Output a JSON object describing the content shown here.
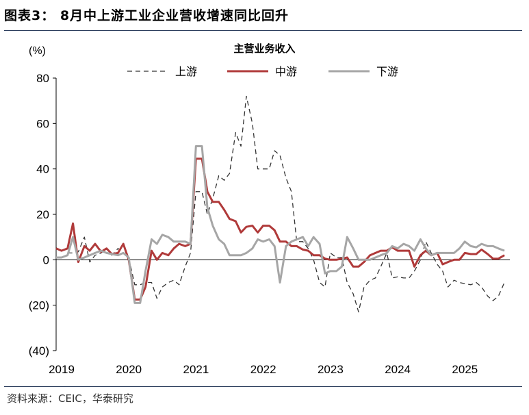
{
  "figure": {
    "title": "图表3： 8月中上游工业企业营收增速同比回升",
    "source": "资料来源：CEIC，华泰研究"
  },
  "chart_data": {
    "type": "line",
    "title": "主营业务收入",
    "ylabel": "(%)",
    "ylim": [
      -40,
      80
    ],
    "yticks": [
      -40,
      -20,
      0,
      20,
      40,
      60,
      80
    ],
    "ytick_labels": [
      "(40)",
      "(20)",
      "0",
      "20",
      "40",
      "60",
      "80"
    ],
    "xlim": [
      2019.0,
      2025.75
    ],
    "xticks": [
      2019,
      2020,
      2021,
      2022,
      2023,
      2024,
      2025
    ],
    "xtick_labels": [
      "2019",
      "2020",
      "2021",
      "2022",
      "2023",
      "2024",
      "2025"
    ],
    "legend_position": "top",
    "series": [
      {
        "name": "上游",
        "color": "#333333",
        "style": "dashed",
        "points": [
          [
            2019.17,
            3
          ],
          [
            2019.25,
            3
          ],
          [
            2019.33,
            3.5
          ],
          [
            2019.42,
            10
          ],
          [
            2019.5,
            -1
          ],
          [
            2019.58,
            2
          ],
          [
            2019.67,
            3
          ],
          [
            2019.75,
            5
          ],
          [
            2019.83,
            2
          ],
          [
            2019.92,
            5
          ],
          [
            2020.0,
            3
          ],
          [
            2020.08,
            1
          ],
          [
            2020.17,
            -11
          ],
          [
            2020.25,
            -11
          ],
          [
            2020.33,
            -10
          ],
          [
            2020.42,
            -10
          ],
          [
            2020.5,
            -17
          ],
          [
            2020.58,
            -12
          ],
          [
            2020.67,
            -10
          ],
          [
            2020.75,
            -9
          ],
          [
            2020.83,
            -11
          ],
          [
            2020.92,
            -3
          ],
          [
            2021.0,
            3
          ],
          [
            2021.08,
            30
          ],
          [
            2021.17,
            30
          ],
          [
            2021.25,
            20
          ],
          [
            2021.33,
            27
          ],
          [
            2021.42,
            37
          ],
          [
            2021.5,
            35
          ],
          [
            2021.58,
            38
          ],
          [
            2021.67,
            56
          ],
          [
            2021.75,
            50
          ],
          [
            2021.83,
            72
          ],
          [
            2021.92,
            60
          ],
          [
            2022.0,
            40
          ],
          [
            2022.08,
            40
          ],
          [
            2022.17,
            40
          ],
          [
            2022.25,
            48
          ],
          [
            2022.33,
            46
          ],
          [
            2022.42,
            36
          ],
          [
            2022.5,
            30
          ],
          [
            2022.58,
            8
          ],
          [
            2022.67,
            8
          ],
          [
            2022.75,
            5
          ],
          [
            2022.83,
            0
          ],
          [
            2022.92,
            -10
          ],
          [
            2023.0,
            -12
          ],
          [
            2023.08,
            3
          ],
          [
            2023.17,
            1
          ],
          [
            2023.25,
            1
          ],
          [
            2023.33,
            -10
          ],
          [
            2023.42,
            -15
          ],
          [
            2023.5,
            -23
          ],
          [
            2023.58,
            -12
          ],
          [
            2023.67,
            -9
          ],
          [
            2023.75,
            -8
          ],
          [
            2023.83,
            -3
          ],
          [
            2023.92,
            3
          ],
          [
            2024.0,
            -8
          ],
          [
            2024.08,
            -7.5
          ],
          [
            2024.17,
            -8
          ],
          [
            2024.25,
            -8
          ],
          [
            2024.33,
            -5
          ],
          [
            2024.42,
            0
          ],
          [
            2024.5,
            8
          ],
          [
            2024.58,
            3
          ],
          [
            2024.67,
            -2
          ],
          [
            2024.75,
            -5
          ],
          [
            2024.83,
            -12
          ],
          [
            2024.92,
            -9
          ],
          [
            2025.0,
            -10
          ],
          [
            2025.08,
            -10.5
          ],
          [
            2025.17,
            -11
          ],
          [
            2025.25,
            -10
          ],
          [
            2025.33,
            -12
          ],
          [
            2025.42,
            -16
          ],
          [
            2025.5,
            -18
          ],
          [
            2025.58,
            -16
          ],
          [
            2025.67,
            -10
          ]
        ]
      },
      {
        "name": "中游",
        "color": "#b03a3a",
        "style": "solid",
        "points": [
          [
            2019.0,
            5
          ],
          [
            2019.08,
            4
          ],
          [
            2019.17,
            5
          ],
          [
            2019.25,
            16
          ],
          [
            2019.33,
            -1
          ],
          [
            2019.42,
            6
          ],
          [
            2019.5,
            4
          ],
          [
            2019.58,
            7
          ],
          [
            2019.67,
            3.5
          ],
          [
            2019.75,
            5
          ],
          [
            2019.83,
            2.5
          ],
          [
            2019.92,
            3
          ],
          [
            2020.0,
            7
          ],
          [
            2020.08,
            0
          ],
          [
            2020.17,
            -17.5
          ],
          [
            2020.25,
            -17.5
          ],
          [
            2020.33,
            -12
          ],
          [
            2020.42,
            4
          ],
          [
            2020.5,
            0
          ],
          [
            2020.58,
            3
          ],
          [
            2020.67,
            2
          ],
          [
            2020.75,
            5
          ],
          [
            2020.83,
            7
          ],
          [
            2020.92,
            6
          ],
          [
            2021.0,
            7
          ],
          [
            2021.08,
            44.5
          ],
          [
            2021.17,
            44.5
          ],
          [
            2021.25,
            30
          ],
          [
            2021.33,
            25.5
          ],
          [
            2021.42,
            25.5
          ],
          [
            2021.5,
            22
          ],
          [
            2021.58,
            18
          ],
          [
            2021.67,
            17
          ],
          [
            2021.75,
            12
          ],
          [
            2021.83,
            14.5
          ],
          [
            2021.92,
            15
          ],
          [
            2022.0,
            12
          ],
          [
            2022.08,
            15
          ],
          [
            2022.17,
            15
          ],
          [
            2022.25,
            13
          ],
          [
            2022.33,
            8
          ],
          [
            2022.42,
            8
          ],
          [
            2022.5,
            6
          ],
          [
            2022.58,
            6
          ],
          [
            2022.67,
            4.5
          ],
          [
            2022.75,
            4
          ],
          [
            2022.83,
            2
          ],
          [
            2022.92,
            2
          ],
          [
            2023.0,
            0.5
          ],
          [
            2023.08,
            0
          ],
          [
            2023.17,
            0
          ],
          [
            2023.25,
            0.5
          ],
          [
            2023.33,
            1
          ],
          [
            2023.42,
            -3
          ],
          [
            2023.5,
            -3
          ],
          [
            2023.58,
            -1
          ],
          [
            2023.67,
            2
          ],
          [
            2023.75,
            3
          ],
          [
            2023.83,
            4
          ],
          [
            2023.92,
            4
          ],
          [
            2024.0,
            5.5
          ],
          [
            2024.08,
            4
          ],
          [
            2024.17,
            4
          ],
          [
            2024.25,
            4
          ],
          [
            2024.33,
            -3
          ],
          [
            2024.42,
            2
          ],
          [
            2024.5,
            4
          ],
          [
            2024.58,
            2
          ],
          [
            2024.67,
            3
          ],
          [
            2024.75,
            -2
          ],
          [
            2024.83,
            -1
          ],
          [
            2024.92,
            0
          ],
          [
            2025.0,
            0
          ],
          [
            2025.08,
            3
          ],
          [
            2025.17,
            2.5
          ],
          [
            2025.25,
            2.5
          ],
          [
            2025.33,
            4.5
          ],
          [
            2025.42,
            2.5
          ],
          [
            2025.5,
            0.5
          ],
          [
            2025.58,
            0.5
          ],
          [
            2025.67,
            2
          ]
        ]
      },
      {
        "name": "下游",
        "color": "#a6a6a6",
        "style": "solid",
        "points": [
          [
            2019.0,
            1
          ],
          [
            2019.08,
            1
          ],
          [
            2019.17,
            2
          ],
          [
            2019.25,
            10
          ],
          [
            2019.33,
            0
          ],
          [
            2019.42,
            1
          ],
          [
            2019.5,
            2
          ],
          [
            2019.58,
            3
          ],
          [
            2019.67,
            4
          ],
          [
            2019.75,
            3
          ],
          [
            2019.83,
            2.5
          ],
          [
            2019.92,
            2
          ],
          [
            2020.0,
            3
          ],
          [
            2020.08,
            1
          ],
          [
            2020.17,
            -19
          ],
          [
            2020.25,
            -19
          ],
          [
            2020.33,
            -5
          ],
          [
            2020.42,
            9
          ],
          [
            2020.5,
            7
          ],
          [
            2020.58,
            11
          ],
          [
            2020.67,
            10
          ],
          [
            2020.75,
            8
          ],
          [
            2020.83,
            8
          ],
          [
            2020.92,
            8
          ],
          [
            2021.0,
            7
          ],
          [
            2021.08,
            50
          ],
          [
            2021.17,
            50
          ],
          [
            2021.25,
            23
          ],
          [
            2021.33,
            15
          ],
          [
            2021.42,
            9
          ],
          [
            2021.5,
            7
          ],
          [
            2021.58,
            2
          ],
          [
            2021.67,
            2
          ],
          [
            2021.75,
            2
          ],
          [
            2021.83,
            3
          ],
          [
            2021.92,
            5
          ],
          [
            2022.0,
            9
          ],
          [
            2022.08,
            8
          ],
          [
            2022.17,
            9
          ],
          [
            2022.25,
            6
          ],
          [
            2022.33,
            -10
          ],
          [
            2022.42,
            6
          ],
          [
            2022.5,
            8
          ],
          [
            2022.58,
            9
          ],
          [
            2022.67,
            10
          ],
          [
            2022.75,
            6
          ],
          [
            2022.83,
            10
          ],
          [
            2022.92,
            7
          ],
          [
            2023.0,
            -6
          ],
          [
            2023.08,
            -5
          ],
          [
            2023.17,
            -5
          ],
          [
            2023.25,
            -3
          ],
          [
            2023.33,
            10
          ],
          [
            2023.42,
            5
          ],
          [
            2023.5,
            0
          ],
          [
            2023.58,
            0
          ],
          [
            2023.67,
            0
          ],
          [
            2023.75,
            1
          ],
          [
            2023.83,
            2
          ],
          [
            2023.92,
            3
          ],
          [
            2024.0,
            6
          ],
          [
            2024.08,
            5
          ],
          [
            2024.17,
            7
          ],
          [
            2024.25,
            6
          ],
          [
            2024.33,
            4
          ],
          [
            2024.42,
            9
          ],
          [
            2024.5,
            5
          ],
          [
            2024.58,
            2
          ],
          [
            2024.67,
            3
          ],
          [
            2024.75,
            3
          ],
          [
            2024.83,
            3
          ],
          [
            2024.92,
            3
          ],
          [
            2025.0,
            5
          ],
          [
            2025.08,
            8
          ],
          [
            2025.17,
            6
          ],
          [
            2025.25,
            5.5
          ],
          [
            2025.33,
            7
          ],
          [
            2025.42,
            6
          ],
          [
            2025.5,
            6
          ],
          [
            2025.58,
            5
          ],
          [
            2025.67,
            4
          ]
        ]
      }
    ]
  }
}
